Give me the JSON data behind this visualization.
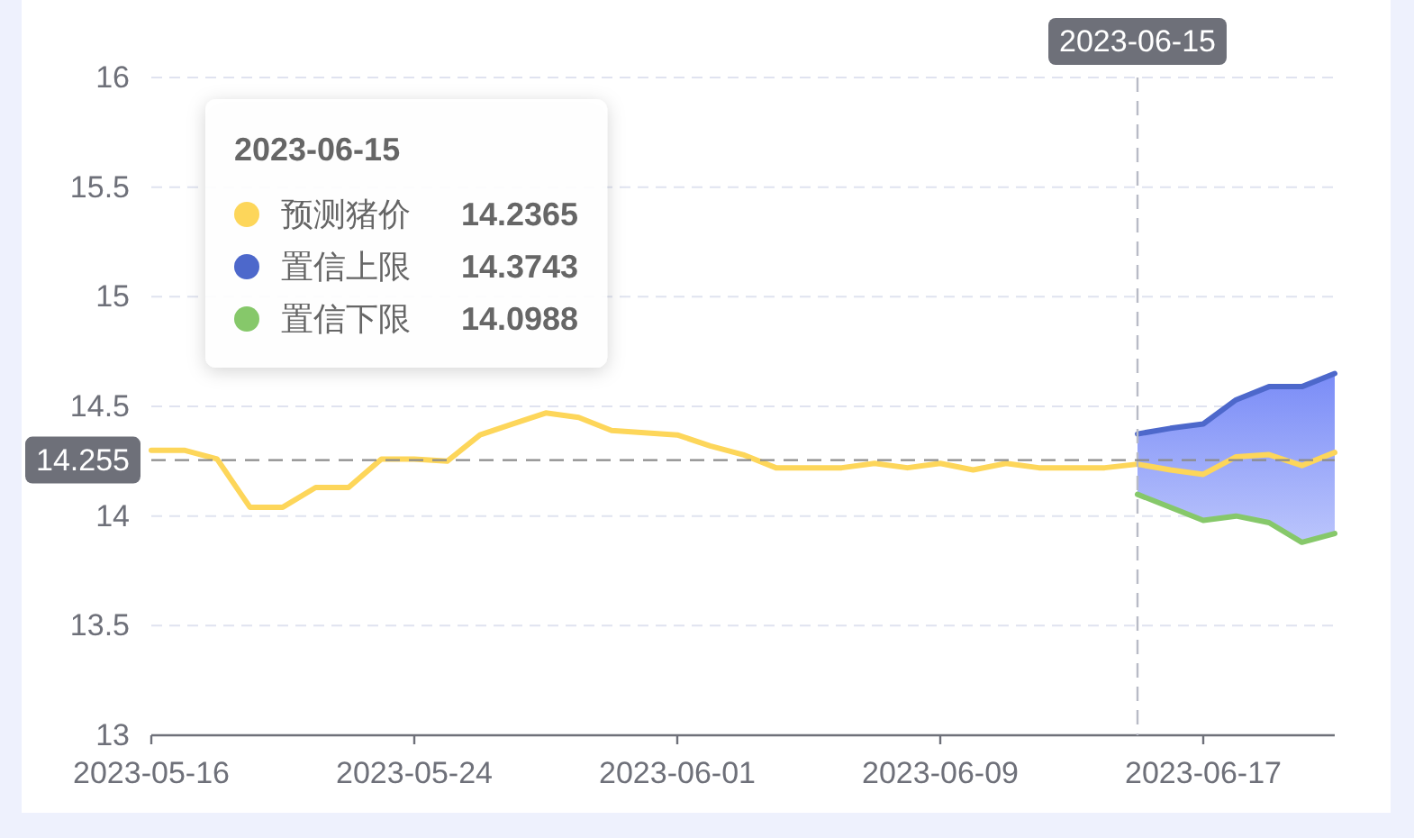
{
  "chart_data": {
    "type": "line",
    "x": [
      "2023-05-16",
      "2023-05-17",
      "2023-05-18",
      "2023-05-19",
      "2023-05-20",
      "2023-05-21",
      "2023-05-22",
      "2023-05-23",
      "2023-05-24",
      "2023-05-25",
      "2023-05-26",
      "2023-05-27",
      "2023-05-28",
      "2023-05-29",
      "2023-05-30",
      "2023-05-31",
      "2023-06-01",
      "2023-06-02",
      "2023-06-03",
      "2023-06-04",
      "2023-06-05",
      "2023-06-06",
      "2023-06-07",
      "2023-06-08",
      "2023-06-09",
      "2023-06-10",
      "2023-06-11",
      "2023-06-12",
      "2023-06-13",
      "2023-06-14",
      "2023-06-15",
      "2023-06-16",
      "2023-06-17",
      "2023-06-18",
      "2023-06-19",
      "2023-06-20",
      "2023-06-21"
    ],
    "xlim": [
      "2023-05-16",
      "2023-06-21"
    ],
    "xticks": [
      "2023-05-16",
      "2023-05-24",
      "2023-06-01",
      "2023-06-09",
      "2023-06-17"
    ],
    "ylim": [
      13,
      16
    ],
    "yticks": [
      13,
      13.5,
      14,
      14.5,
      15,
      15.5,
      16
    ],
    "grid": "y",
    "legend": "top left",
    "legend_title": "2023-06-15",
    "annotations": [
      "14.2365",
      "14.3743",
      "14.0988"
    ],
    "ref_lines": [
      {
        "axis": "x",
        "value": "2023-06-15",
        "label": "2023-06-15",
        "color": "#b8bbc6",
        "line_style": "dashed"
      },
      {
        "axis": "y",
        "value": 14.255,
        "label": "14.255",
        "color": "#8c8c8c",
        "line_style": "dashed"
      }
    ],
    "series": [
      {
        "name": "预测猪价",
        "color": "#fdd65a",
        "values": [
          14.3,
          14.3,
          14.26,
          14.04,
          14.04,
          14.13,
          14.13,
          14.26,
          14.26,
          14.25,
          14.37,
          14.42,
          14.47,
          14.45,
          14.39,
          14.38,
          14.37,
          14.32,
          14.28,
          14.22,
          14.22,
          14.22,
          14.24,
          14.22,
          14.24,
          14.21,
          14.24,
          14.22,
          14.22,
          14.22,
          14.2365,
          14.21,
          14.19,
          14.27,
          14.28,
          14.23,
          14.29
        ],
        "lower": [
          null,
          null,
          null,
          null,
          null,
          null,
          null,
          null,
          null,
          null,
          null,
          null,
          null,
          null,
          null,
          null,
          null,
          null,
          null,
          null,
          null,
          null,
          null,
          null,
          null,
          null,
          null,
          null,
          null,
          null,
          14.0988,
          14.04,
          13.98,
          14.0,
          13.97,
          13.88,
          13.92
        ],
        "upper": [
          null,
          null,
          null,
          null,
          null,
          null,
          null,
          null,
          null,
          null,
          null,
          null,
          null,
          null,
          null,
          null,
          null,
          null,
          null,
          null,
          null,
          null,
          null,
          null,
          null,
          null,
          null,
          null,
          null,
          null,
          14.3743,
          14.4,
          14.42,
          14.53,
          14.59,
          14.59,
          14.65
        ]
      },
      {
        "name": "置信上限",
        "color": "#4d68cb",
        "values": [
          null,
          null,
          null,
          null,
          null,
          null,
          null,
          null,
          null,
          null,
          null,
          null,
          null,
          null,
          null,
          null,
          null,
          null,
          null,
          null,
          null,
          null,
          null,
          null,
          null,
          null,
          null,
          null,
          null,
          null,
          14.3743,
          14.4,
          14.42,
          14.53,
          14.59,
          14.59,
          14.65
        ]
      },
      {
        "name": "置信下限",
        "color": "#86c86a",
        "values": [
          null,
          null,
          null,
          null,
          null,
          null,
          null,
          null,
          null,
          null,
          null,
          null,
          null,
          null,
          null,
          null,
          null,
          null,
          null,
          null,
          null,
          null,
          null,
          null,
          null,
          null,
          null,
          null,
          null,
          null,
          14.0988,
          14.04,
          13.98,
          14.0,
          13.97,
          13.88,
          13.92
        ]
      }
    ]
  }
}
